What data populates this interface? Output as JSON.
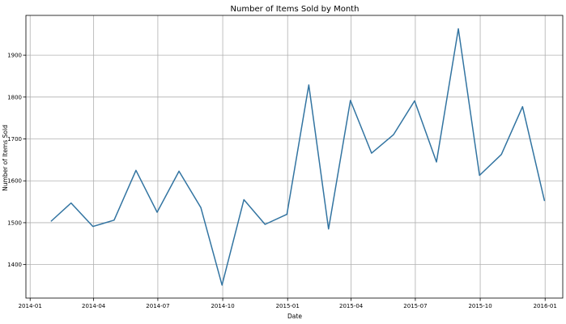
{
  "chart_data": {
    "type": "line",
    "title": "Number of Items Sold by Month",
    "xlabel": "Date",
    "ylabel": "Number of Items Sold",
    "grid": true,
    "legend": "none",
    "line_color": "#3274a1",
    "x": [
      "2014-01-31",
      "2014-02-28",
      "2014-03-31",
      "2014-04-30",
      "2014-05-31",
      "2014-06-30",
      "2014-07-31",
      "2014-08-31",
      "2014-09-30",
      "2014-10-31",
      "2014-11-30",
      "2014-12-31",
      "2015-01-31",
      "2015-02-28",
      "2015-03-31",
      "2015-04-30",
      "2015-05-31",
      "2015-06-30",
      "2015-07-31",
      "2015-08-31",
      "2015-09-30",
      "2015-10-31",
      "2015-11-30",
      "2015-12-31"
    ],
    "series": [
      {
        "values": [
          1504,
          1547,
          1491,
          1506,
          1625,
          1525,
          1623,
          1536,
          1351,
          1555,
          1496,
          1520,
          1829,
          1485,
          1792,
          1666,
          1710,
          1791,
          1645,
          1963,
          1613,
          1663,
          1777,
          1553
        ]
      }
    ],
    "xlim": [
      "2013-12-26",
      "2016-01-26"
    ],
    "ylim": [
      1320,
      1995
    ],
    "x_ticks": [
      {
        "date": "2014-01-01",
        "label": "2014-01"
      },
      {
        "date": "2014-04-01",
        "label": "2014-04"
      },
      {
        "date": "2014-07-01",
        "label": "2014-07"
      },
      {
        "date": "2014-10-01",
        "label": "2014-10"
      },
      {
        "date": "2015-01-01",
        "label": "2015-01"
      },
      {
        "date": "2015-04-01",
        "label": "2015-04"
      },
      {
        "date": "2015-07-01",
        "label": "2015-07"
      },
      {
        "date": "2015-10-01",
        "label": "2015-10"
      },
      {
        "date": "2016-01-01",
        "label": "2016-01"
      }
    ],
    "y_ticks": [
      1400,
      1500,
      1600,
      1700,
      1800,
      1900
    ]
  }
}
